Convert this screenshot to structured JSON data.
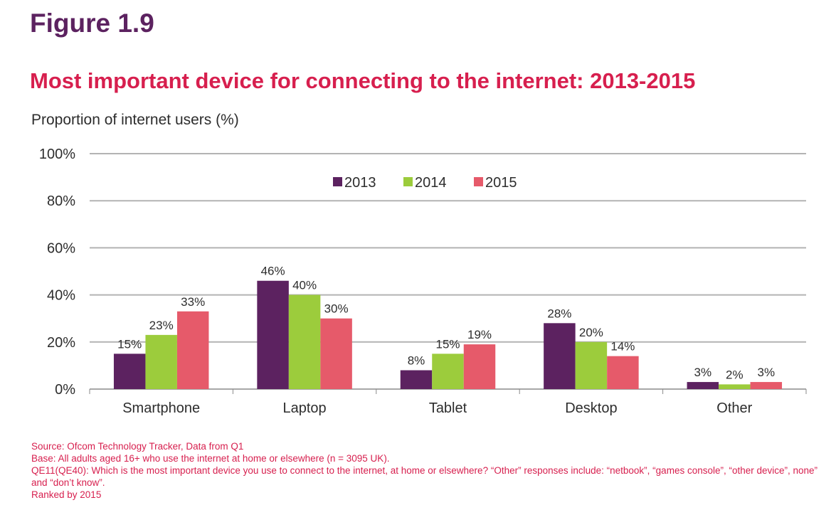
{
  "figure_label": "Figure 1.9",
  "chart_data": {
    "type": "bar",
    "title": "Most important device for connecting to the internet: 2013-2015",
    "ylabel": "Proportion of internet users (%)",
    "xlabel": "",
    "categories": [
      "Smartphone",
      "Laptop",
      "Tablet",
      "Desktop",
      "Other"
    ],
    "series": [
      {
        "name": "2013",
        "color": "#5c2260",
        "values": [
          15,
          46,
          8,
          28,
          3
        ],
        "labels": [
          "15%",
          "46%",
          "8%",
          "28%",
          "3%"
        ]
      },
      {
        "name": "2014",
        "color": "#9ccc3c",
        "values": [
          23,
          40,
          15,
          20,
          2
        ],
        "labels": [
          "23%",
          "40%",
          "15%",
          "20%",
          "2%"
        ]
      },
      {
        "name": "2015",
        "color": "#e65a6a",
        "values": [
          33,
          30,
          19,
          14,
          3
        ],
        "labels": [
          "33%",
          "30%",
          "19%",
          "14%",
          "3%"
        ]
      }
    ],
    "ylim": [
      0,
      100
    ],
    "yticks": [
      0,
      20,
      40,
      60,
      80,
      100
    ],
    "ytick_labels": [
      "0%",
      "20%",
      "40%",
      "60%",
      "80%",
      "100%"
    ],
    "grid": true,
    "legend_position": "top-center"
  },
  "notes": {
    "source": "Source: Ofcom Technology Tracker, Data from Q1",
    "base": "Base: All adults aged 16+ who use the internet at home or elsewhere (n = 3095 UK).",
    "question": "QE11(QE40): Which is the most important device you use to connect to the internet, at home or elsewhere? “Other” responses include: “netbook”, “games console”, “other device”, none” and “don’t know”.",
    "ranked": "Ranked by 2015"
  }
}
